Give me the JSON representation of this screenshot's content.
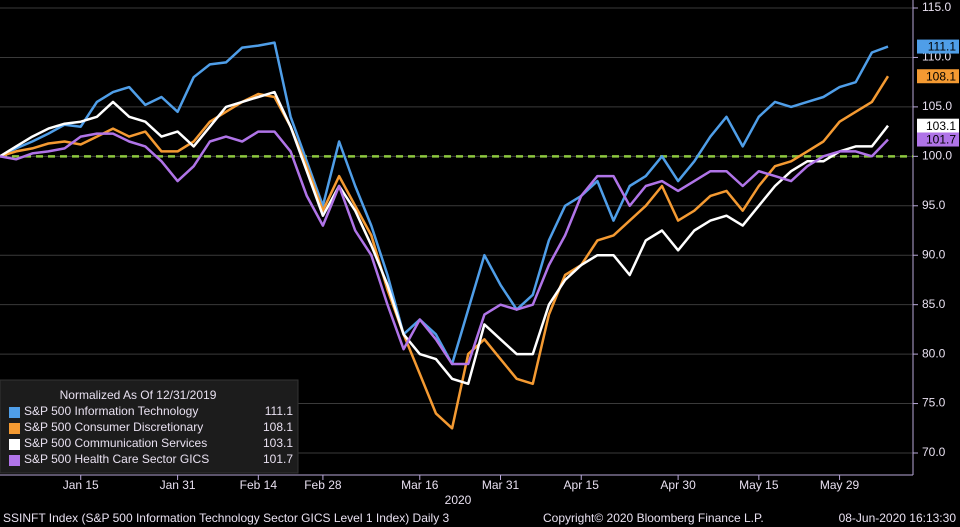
{
  "chart_data": {
    "type": "line",
    "legend_title": "Normalized As Of 12/31/2019",
    "xlabel": "2020",
    "categories": [
      null,
      null,
      null,
      null,
      null,
      "Jan 15",
      null,
      null,
      null,
      null,
      null,
      "Jan 31",
      null,
      null,
      null,
      null,
      "Feb 14",
      null,
      null,
      null,
      "Feb 28",
      null,
      null,
      null,
      null,
      null,
      "Mar 16",
      null,
      null,
      null,
      null,
      "Mar 31",
      null,
      null,
      null,
      null,
      "Apr 15",
      null,
      null,
      null,
      null,
      null,
      "Apr 30",
      null,
      null,
      null,
      null,
      "May 15",
      null,
      null,
      null,
      null,
      "May 29",
      null,
      null,
      null
    ],
    "series": [
      {
        "name": "S&P 500 Information Technology",
        "color": "#4f9ee8",
        "values": [
          100,
          100.8,
          101.5,
          102.3,
          103.2,
          103,
          105.5,
          106.5,
          107,
          105.2,
          106,
          104.5,
          108,
          109.3,
          109.5,
          111,
          111.2,
          111.5,
          104,
          99.5,
          95,
          101.5,
          97,
          93,
          88,
          82,
          83.5,
          82,
          79,
          84.5,
          90,
          87,
          84.5,
          86,
          91.5,
          95,
          96,
          97.5,
          93.5,
          97,
          98,
          100,
          97.5,
          99.5,
          102,
          104,
          101,
          104,
          105.5,
          105,
          105.5,
          106,
          107,
          107.5,
          110.5,
          111.1
        ]
      },
      {
        "name": "S&P 500 Consumer Discretionary",
        "color": "#f49a32",
        "values": [
          100,
          100.5,
          100.8,
          101.3,
          101.5,
          101.2,
          102,
          102.8,
          102,
          102.5,
          100.5,
          100.5,
          101.5,
          103.5,
          104.5,
          105.5,
          106.3,
          106,
          103,
          99,
          94.5,
          98,
          95,
          92,
          86.5,
          82,
          78,
          74,
          72.5,
          80,
          81.5,
          79.5,
          77.5,
          77,
          84,
          88,
          89,
          91.5,
          92,
          93.5,
          95,
          97,
          93.5,
          94.5,
          96,
          96.5,
          94.5,
          97,
          99,
          99.5,
          100.5,
          101.5,
          103.5,
          104.5,
          105.5,
          108.1
        ]
      },
      {
        "name": "S&P 500 Communication Services",
        "color": "#ffffff",
        "values": [
          100,
          101,
          102,
          102.8,
          103.3,
          103.5,
          104,
          105.5,
          104,
          103.5,
          102,
          102.5,
          101,
          103,
          105,
          105.5,
          106,
          106.5,
          103,
          98.5,
          94,
          97,
          94.5,
          91,
          87,
          82,
          80,
          79.5,
          77.5,
          77,
          83,
          81.5,
          80,
          80,
          85,
          87.5,
          89,
          90,
          90,
          88,
          91.5,
          92.5,
          90.5,
          92.5,
          93.5,
          94,
          93,
          95,
          97,
          98.5,
          99.5,
          99.5,
          100.5,
          101,
          101,
          103.1
        ]
      },
      {
        "name": "S&P 500 Health Care Sector GICS",
        "color": "#b074e8",
        "values": [
          100,
          99.7,
          100.3,
          100.5,
          100.8,
          102,
          102.3,
          102.3,
          101.5,
          101,
          99.5,
          97.5,
          99,
          101.5,
          102,
          101.5,
          102.5,
          102.5,
          100.5,
          96,
          93,
          97,
          92.5,
          90,
          85,
          80.5,
          83.5,
          81.5,
          79,
          79,
          84,
          85,
          84.5,
          85,
          89,
          92,
          96,
          98,
          98,
          95,
          97,
          97.5,
          96.5,
          97.5,
          98.5,
          98.5,
          97,
          98.5,
          98,
          97.5,
          99,
          100,
          100.5,
          100.5,
          100,
          101.7
        ]
      }
    ],
    "ylim": [
      70,
      115
    ],
    "yticks": [
      {
        "value": 70,
        "label": "70.0"
      },
      {
        "value": 75,
        "label": "75.0"
      },
      {
        "value": 80,
        "label": "80.0"
      },
      {
        "value": 85,
        "label": "85.0"
      },
      {
        "value": 90,
        "label": "90.0"
      },
      {
        "value": 95,
        "label": "95.0"
      },
      {
        "value": 100,
        "label": "100.0"
      },
      {
        "value": 105,
        "label": "105.0"
      },
      {
        "value": 110,
        "label": "110.0"
      },
      {
        "value": 115,
        "label": "115.0"
      }
    ],
    "grid": true,
    "reference_line": {
      "value": 100,
      "color": "#8cc63f"
    },
    "legend_position": "lower left",
    "footer_left": "SSINFT Index (S&P 500 Information Technology Sector GICS Level 1 Index)  Daily 3",
    "footer_center": "Copyright© 2020 Bloomberg Finance L.P.",
    "footer_right": "08-Jun-2020 16:13:30"
  }
}
